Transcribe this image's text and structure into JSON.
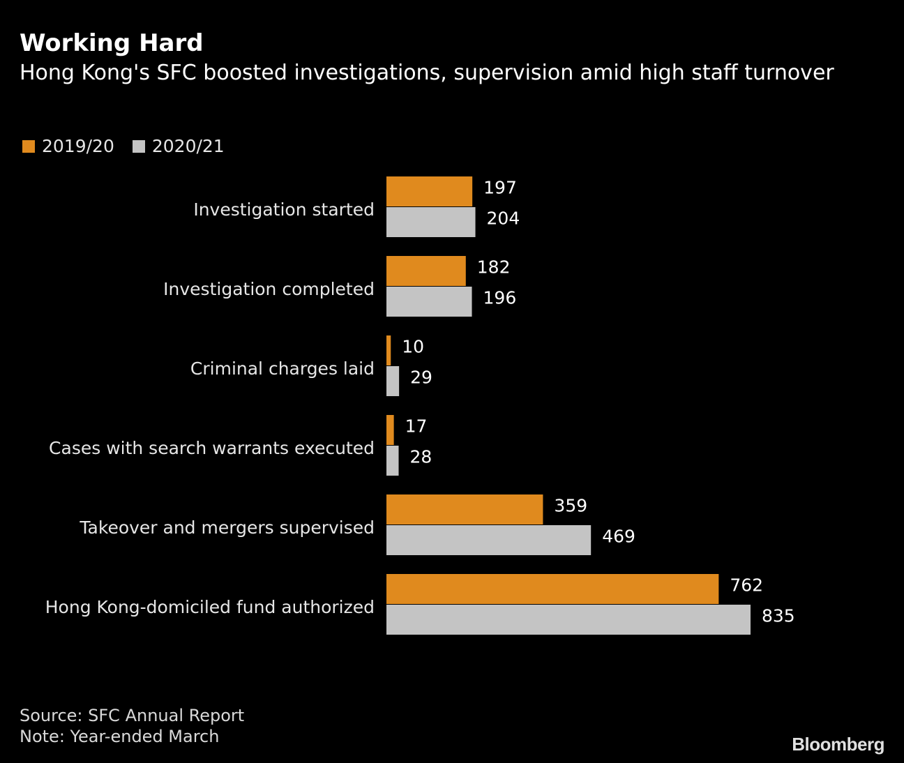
{
  "header": {
    "title": "Working Hard",
    "subtitle": "Hong Kong's SFC boosted investigations, supervision amid high staff turnover"
  },
  "legend": [
    {
      "label": "2019/20",
      "color": "#e08a1e"
    },
    {
      "label": "2020/21",
      "color": "#c4c4c4"
    }
  ],
  "chart_data": {
    "type": "bar",
    "orientation": "horizontal",
    "categories": [
      "Investigation started",
      "Investigation completed",
      "Criminal charges laid",
      "Cases with search warrants executed",
      "Takeover and mergers supervised",
      "Hong Kong-domiciled fund authorized"
    ],
    "series": [
      {
        "name": "2019/20",
        "color": "#e08a1e",
        "values": [
          197,
          182,
          10,
          17,
          359,
          762
        ]
      },
      {
        "name": "2020/21",
        "color": "#c4c4c4",
        "values": [
          204,
          196,
          29,
          28,
          469,
          835
        ]
      }
    ],
    "xlim": [
      0,
      835
    ],
    "grid": false,
    "axis_visible": false,
    "legend_position": "top-left",
    "data_labels": true
  },
  "footer": {
    "source": "Source: SFC Annual Report",
    "note": "Note: Year-ended March",
    "logo": "Bloomberg"
  }
}
